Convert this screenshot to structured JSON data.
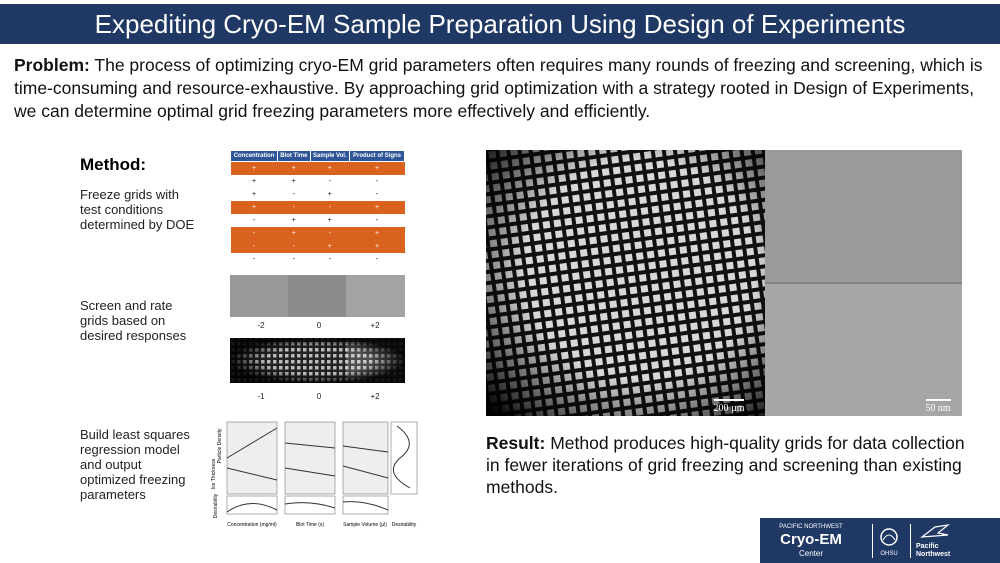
{
  "header": {
    "title": "Expediting Cryo-EM Sample Preparation Using Design of Experiments"
  },
  "problem": {
    "label": "Problem:",
    "text": "The process of optimizing cryo-EM grid parameters often requires many rounds of freezing and screening, which is time-consuming and resource-exhaustive. By approaching grid optimization with a strategy rooted in Design of Experiments, we can determine optimal grid freezing parameters more effectively and efficiently."
  },
  "method": {
    "heading": "Method:",
    "steps": [
      "Freeze grids with test conditions determined by DOE",
      "Screen and rate grids based on desired responses",
      "Build least squares regression model and output optimized freezing parameters"
    ]
  },
  "table": {
    "headers": [
      "Concentration",
      "Blot Time",
      "Sample Vol.",
      "Product of Signs"
    ],
    "rows": [
      [
        "+",
        "+",
        "+",
        "+"
      ],
      [
        "+",
        "+",
        "-",
        "-"
      ],
      [
        "+",
        "-",
        "+",
        "-"
      ],
      [
        "+",
        "-",
        "-",
        "+"
      ],
      [
        "-",
        "+",
        "+",
        "-"
      ],
      [
        "-",
        "+",
        "-",
        "+"
      ],
      [
        "-",
        "-",
        "+",
        "+"
      ],
      [
        "-",
        "-",
        "-",
        "-"
      ]
    ]
  },
  "screen": {
    "row1_labels": [
      "-2",
      "0",
      "+2"
    ],
    "row2_labels": [
      "-1",
      "0",
      "+2"
    ]
  },
  "regression": {
    "x_labels": [
      "Concentration (mg/ml)",
      "Blot Time (s)",
      "Sample Volume (µl)",
      "Desirability"
    ],
    "y_labels": [
      "Particle Density",
      "Ice Thickness",
      "Desirability"
    ]
  },
  "micrograph": {
    "scale_left": "200 µm",
    "scale_right": "50 nm"
  },
  "result": {
    "label": "Result:",
    "text": "Method produces high-quality grids for data collection in fewer iterations of grid freezing and screening than existing methods."
  },
  "logo": {
    "line1": "PACIFIC NORTHWEST",
    "line2": "Cryo-EM",
    "line3": "Center",
    "ohsu": "OHSU",
    "pnnl": "Pacific Northwest"
  }
}
